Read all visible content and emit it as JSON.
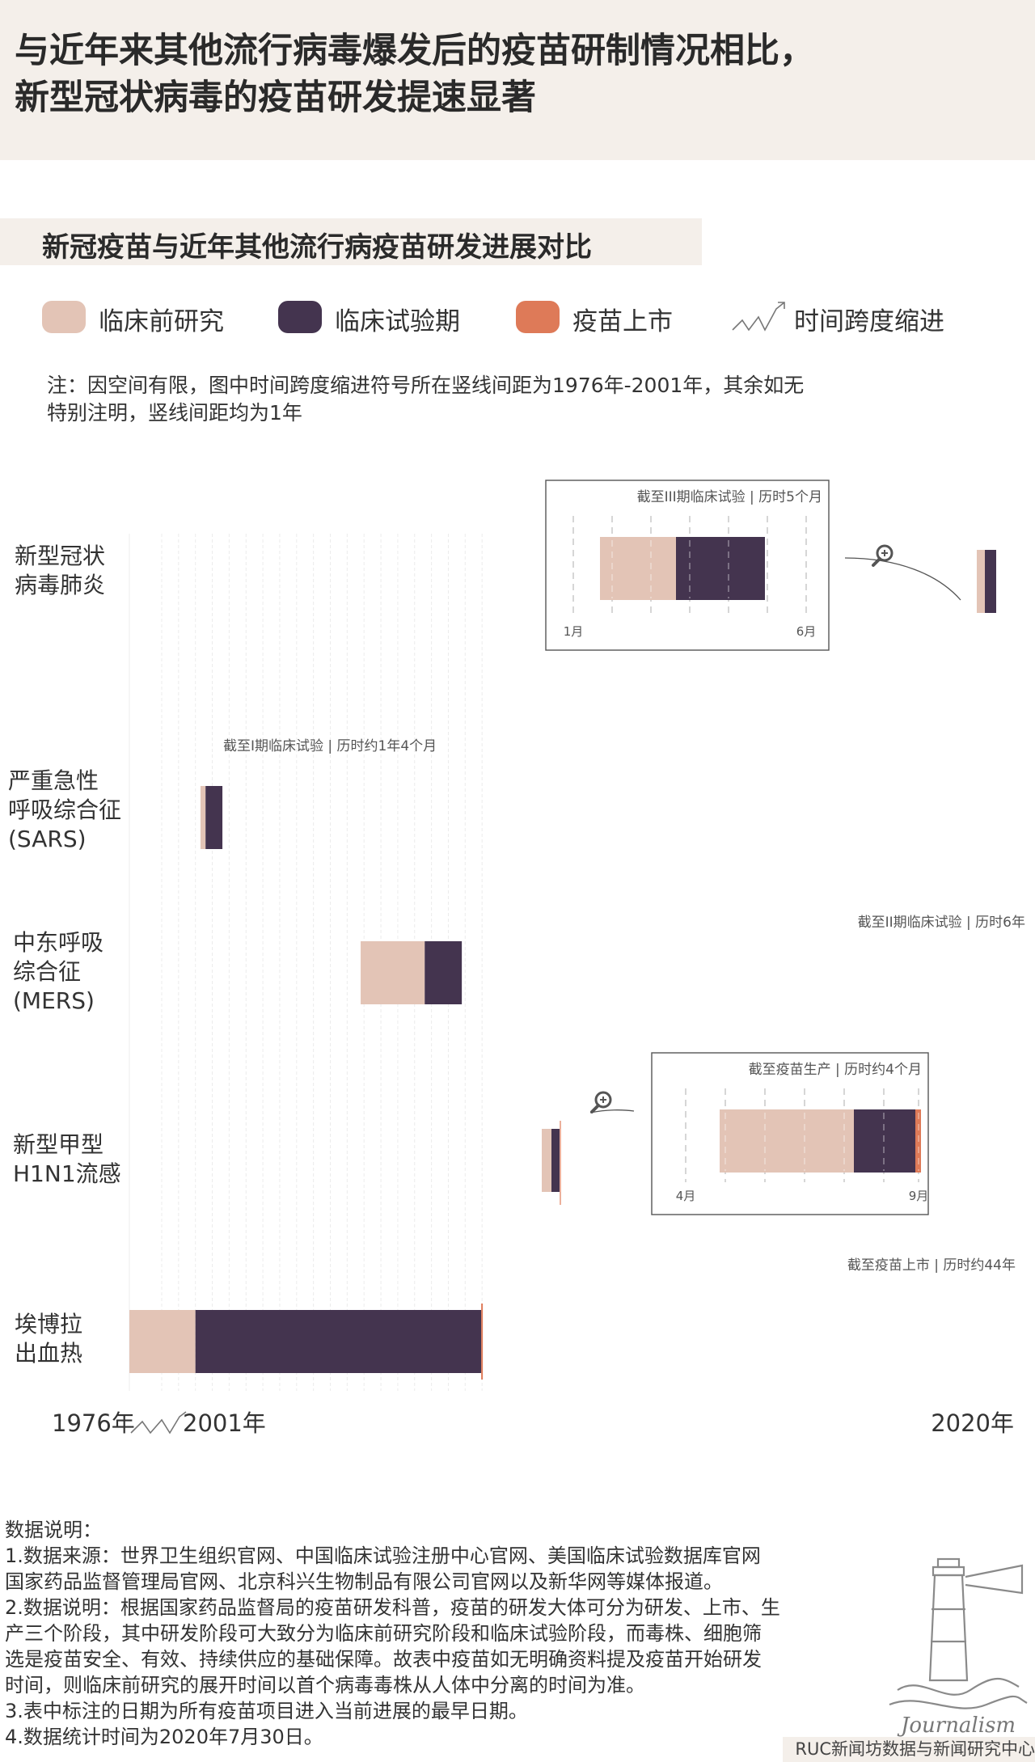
{
  "header": {
    "title_line1": "与近年来其他流行病毒爆发后的疫苗研制情况相比，",
    "title_line2": "新型冠状病毒的疫苗研发提速显著"
  },
  "subtitle": "新冠疫苗与近年其他流行病疫苗研发进展对比",
  "legend": {
    "preclinical": "临床前研究",
    "clinical": "临床试验期",
    "market": "疫苗上市",
    "timecut": "时间跨度缩进"
  },
  "colors": {
    "preclinical": "#e3c4b6",
    "clinical": "#44344f",
    "market": "#de7a58",
    "header_bg": "#f4efea"
  },
  "note": {
    "line1": "注：因空间有限，图中时间跨度缩进符号所在竖线间距为1976年-2001年，其余如无",
    "line2": "特别注明，竖线间距均为1年"
  },
  "chart_data": {
    "type": "table",
    "axis": {
      "start_label": "1976年",
      "cut_label": "2001年",
      "end_label": "2020年",
      "start": 1976,
      "cut": 2001,
      "end": 2020
    },
    "rows": [
      {
        "label": "新型冠状\n病毒肺炎",
        "preclinical_start": 2020.0,
        "clinical_start": 2020.25,
        "end": 2020.42,
        "annotation": "截至III期临床试验 | 历时5个月",
        "zoom": {
          "start_label": "1月",
          "end_label": "6月"
        }
      },
      {
        "label": "严重急性\n呼吸综合征\n(SARS)",
        "preclinical_start": 2003.3,
        "clinical_start": 2003.6,
        "end": 2004.6,
        "annotation": "截至I期临床试验 | 历时约1年4个月"
      },
      {
        "label": "中东呼吸\n综合征\n(MERS)",
        "preclinical_start": 2012.8,
        "clinical_start": 2016.6,
        "end": 2018.8,
        "annotation": "截至II期临床试验 | 历时6年"
      },
      {
        "label": "新型甲型\nH1N1流感",
        "preclinical_start": 2009.3,
        "clinical_start": 2009.55,
        "end": 2009.7,
        "annotation": "截至疫苗生产 | 历时约4个月",
        "zoom": {
          "start_label": "4月",
          "end_label": "9月"
        }
      },
      {
        "label": "埃博拉\n出血热",
        "preclinical_start": 1976.0,
        "clinical_start": 2003.0,
        "end": 2019.95,
        "annotation": "截至疫苗上市 | 历时约44年"
      }
    ]
  },
  "footer": {
    "heading": "数据说明：",
    "lines": [
      "1.数据来源：世界卫生组织官网、中国临床试验注册中心官网、美国临床试验数据库官网",
      "国家药品监督管理局官网、北京科兴生物制品有限公司官网以及新华网等媒体报道。",
      "2.数据说明：根据国家药品监督局的疫苗研发科普，疫苗的研发大体可分为研发、上市、生",
      "产三个阶段，其中研发阶段可大致分为临床前研究阶段和临床试验阶段，而毒株、细胞筛",
      "选是疫苗安全、有效、持续供应的基础保障。故表中疫苗如无明确资料提及疫苗开始研发",
      "时间，则临床前研究的展开时间以首个病毒毒株从人体中分离的时间为准。",
      "3.表中标注的日期为所有疫苗项目进入当前进展的最早日期。",
      "4.数据统计时间为2020年7月30日。"
    ],
    "logo_text": "Journalism",
    "credit": "RUC新闻坊数据与新闻研究中心"
  }
}
